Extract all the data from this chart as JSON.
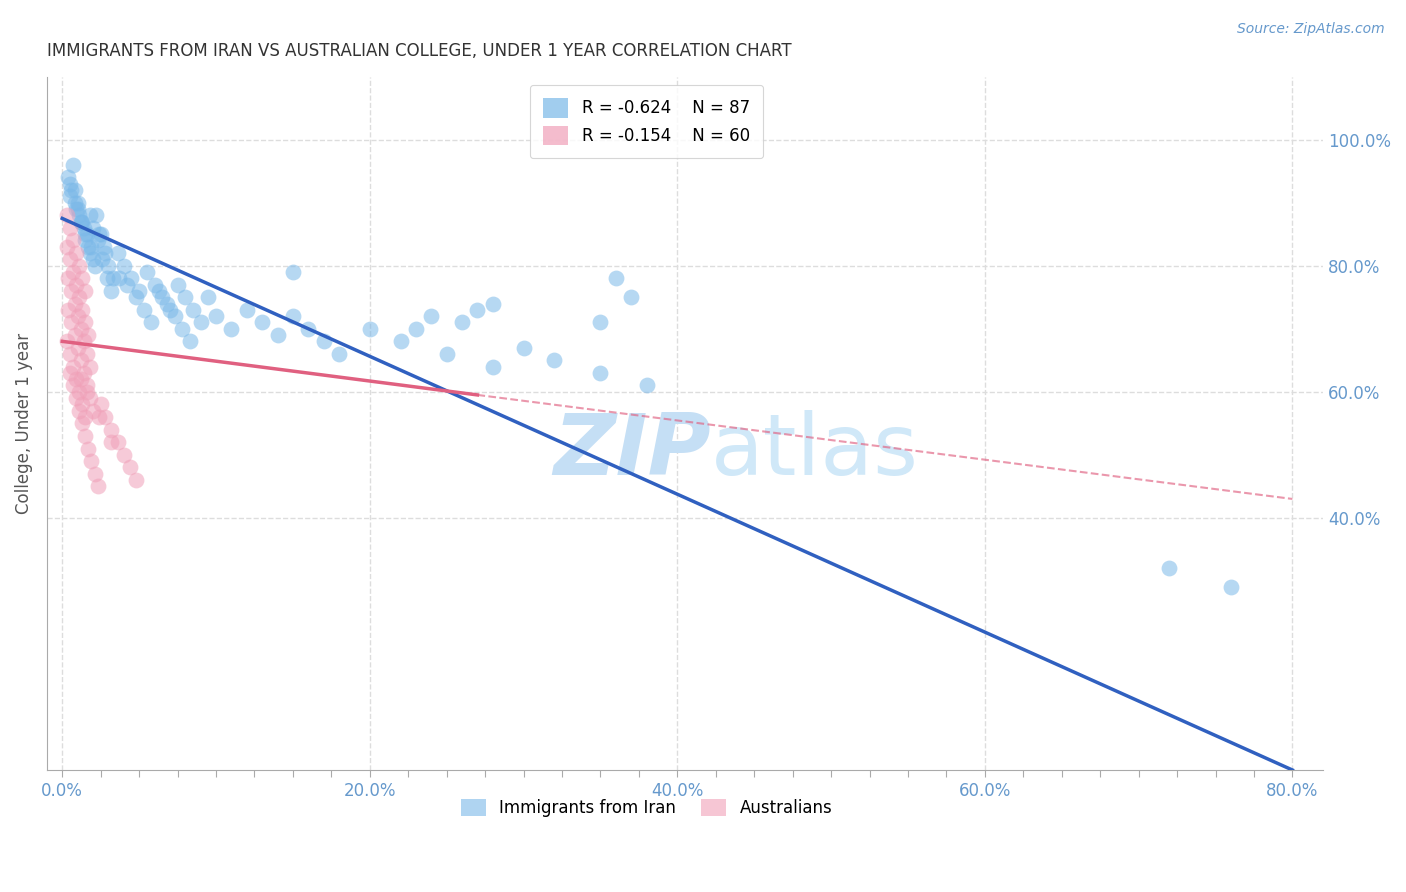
{
  "title": "IMMIGRANTS FROM IRAN VS AUSTRALIAN COLLEGE, UNDER 1 YEAR CORRELATION CHART",
  "source": "Source: ZipAtlas.com",
  "ylabel": "College, Under 1 year",
  "watermark": "ZIPatlas",
  "x_tick_labels": [
    "0.0%",
    "",
    "",
    "",
    "",
    "",
    "",
    "",
    "20.0%",
    "",
    "",
    "",
    "",
    "",
    "",
    "",
    "40.0%",
    "",
    "",
    "",
    "",
    "",
    "",
    "",
    "60.0%",
    "",
    "",
    "",
    "",
    "",
    "",
    "",
    "80.0%"
  ],
  "x_tick_values": [
    0.0,
    0.025,
    0.05,
    0.075,
    0.1,
    0.125,
    0.15,
    0.175,
    0.2,
    0.225,
    0.25,
    0.275,
    0.3,
    0.325,
    0.35,
    0.375,
    0.4,
    0.425,
    0.45,
    0.475,
    0.5,
    0.525,
    0.55,
    0.575,
    0.6,
    0.625,
    0.65,
    0.675,
    0.7,
    0.725,
    0.75,
    0.775,
    0.8
  ],
  "y_tick_labels": [
    "100.0%",
    "80.0%",
    "60.0%",
    "40.0%"
  ],
  "y_tick_values": [
    1.0,
    0.8,
    0.6,
    0.4
  ],
  "xlim": [
    -0.01,
    0.82
  ],
  "ylim": [
    0.0,
    1.1
  ],
  "legend_entries": [
    {
      "label": "Immigrants from Iran",
      "color": "#a8c8e8",
      "R": "-0.624",
      "N": "87"
    },
    {
      "label": "Australians",
      "color": "#f4a0b8",
      "R": "-0.154",
      "N": "60"
    }
  ],
  "blue_scatter_x": [
    0.005,
    0.007,
    0.01,
    0.012,
    0.015,
    0.018,
    0.02,
    0.008,
    0.01,
    0.013,
    0.016,
    0.019,
    0.022,
    0.025,
    0.028,
    0.005,
    0.009,
    0.012,
    0.015,
    0.018,
    0.021,
    0.024,
    0.027,
    0.03,
    0.033,
    0.036,
    0.04,
    0.045,
    0.05,
    0.055,
    0.06,
    0.065,
    0.07,
    0.075,
    0.08,
    0.085,
    0.09,
    0.095,
    0.1,
    0.11,
    0.12,
    0.13,
    0.14,
    0.15,
    0.16,
    0.17,
    0.18,
    0.2,
    0.22,
    0.25,
    0.28,
    0.3,
    0.32,
    0.35,
    0.38,
    0.004,
    0.006,
    0.008,
    0.011,
    0.014,
    0.017,
    0.02,
    0.023,
    0.026,
    0.029,
    0.032,
    0.037,
    0.042,
    0.048,
    0.053,
    0.058,
    0.063,
    0.068,
    0.073,
    0.078,
    0.083,
    0.15,
    0.28,
    0.35,
    0.36,
    0.37,
    0.27,
    0.26,
    0.24,
    0.23,
    0.76,
    0.72
  ],
  "blue_scatter_y": [
    0.93,
    0.96,
    0.9,
    0.87,
    0.85,
    0.88,
    0.86,
    0.92,
    0.89,
    0.87,
    0.85,
    0.83,
    0.88,
    0.85,
    0.82,
    0.91,
    0.89,
    0.87,
    0.84,
    0.82,
    0.8,
    0.85,
    0.83,
    0.8,
    0.78,
    0.82,
    0.8,
    0.78,
    0.76,
    0.79,
    0.77,
    0.75,
    0.73,
    0.77,
    0.75,
    0.73,
    0.71,
    0.75,
    0.72,
    0.7,
    0.73,
    0.71,
    0.69,
    0.72,
    0.7,
    0.68,
    0.66,
    0.7,
    0.68,
    0.66,
    0.64,
    0.67,
    0.65,
    0.63,
    0.61,
    0.94,
    0.92,
    0.9,
    0.88,
    0.86,
    0.83,
    0.81,
    0.84,
    0.81,
    0.78,
    0.76,
    0.78,
    0.77,
    0.75,
    0.73,
    0.71,
    0.76,
    0.74,
    0.72,
    0.7,
    0.68,
    0.79,
    0.74,
    0.71,
    0.78,
    0.75,
    0.73,
    0.71,
    0.72,
    0.7,
    0.29,
    0.32
  ],
  "pink_scatter_x": [
    0.003,
    0.005,
    0.007,
    0.009,
    0.011,
    0.013,
    0.015,
    0.003,
    0.005,
    0.007,
    0.009,
    0.011,
    0.013,
    0.015,
    0.017,
    0.004,
    0.006,
    0.008,
    0.01,
    0.012,
    0.014,
    0.016,
    0.018,
    0.003,
    0.005,
    0.007,
    0.009,
    0.011,
    0.013,
    0.015,
    0.004,
    0.006,
    0.008,
    0.01,
    0.012,
    0.014,
    0.016,
    0.018,
    0.02,
    0.005,
    0.007,
    0.009,
    0.011,
    0.013,
    0.015,
    0.017,
    0.019,
    0.021,
    0.023,
    0.025,
    0.028,
    0.032,
    0.036,
    0.04,
    0.044,
    0.048,
    0.012,
    0.016,
    0.024,
    0.032
  ],
  "pink_scatter_y": [
    0.88,
    0.86,
    0.84,
    0.82,
    0.8,
    0.78,
    0.76,
    0.83,
    0.81,
    0.79,
    0.77,
    0.75,
    0.73,
    0.71,
    0.69,
    0.78,
    0.76,
    0.74,
    0.72,
    0.7,
    0.68,
    0.66,
    0.64,
    0.68,
    0.66,
    0.64,
    0.62,
    0.6,
    0.58,
    0.56,
    0.73,
    0.71,
    0.69,
    0.67,
    0.65,
    0.63,
    0.61,
    0.59,
    0.57,
    0.63,
    0.61,
    0.59,
    0.57,
    0.55,
    0.53,
    0.51,
    0.49,
    0.47,
    0.45,
    0.58,
    0.56,
    0.54,
    0.52,
    0.5,
    0.48,
    0.46,
    0.62,
    0.6,
    0.56,
    0.52
  ],
  "blue_line": {
    "x0": 0.0,
    "y0": 0.875,
    "x1": 0.8,
    "y1": 0.0
  },
  "pink_line_solid": {
    "x0": 0.0,
    "y0": 0.68,
    "x1": 0.27,
    "y1": 0.595
  },
  "pink_line_dashed": {
    "x0": 0.27,
    "y0": 0.595,
    "x1": 0.8,
    "y1": 0.43
  },
  "colors": {
    "blue_dot": "#7ab8e8",
    "pink_dot": "#f0a0b8",
    "blue_line": "#3060c0",
    "pink_line": "#e06080",
    "axis_color": "#6699cc",
    "title_color": "#333333",
    "grid_color": "#dddddd",
    "watermark_color": "#c5dff5",
    "background": "#ffffff"
  }
}
